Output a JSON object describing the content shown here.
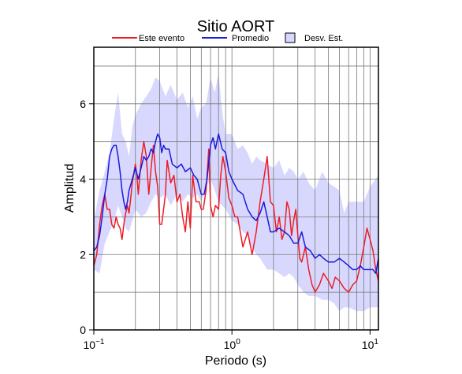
{
  "chart_data": {
    "type": "line",
    "title": "Sitio AORT",
    "xlabel": "Periodo (s)",
    "ylabel": "Amplitud",
    "xscale": "log",
    "xlim": [
      0.1,
      11.5
    ],
    "ylim": [
      0,
      7.5
    ],
    "grid": true,
    "legend_position": "top",
    "x_ticks": [
      {
        "value": 0.1,
        "base": "10",
        "exp": "−1"
      },
      {
        "value": 1,
        "base": "10",
        "exp": "0"
      },
      {
        "value": 10,
        "base": "10",
        "exp": "1"
      }
    ],
    "y_ticks": [
      0,
      2,
      4,
      6
    ],
    "legend": [
      {
        "label": "Este evento",
        "kind": "line",
        "color": "#ee1c25"
      },
      {
        "label": "Promedio",
        "kind": "line",
        "color": "#1a1adc"
      },
      {
        "label": "Desv. Est.",
        "kind": "band",
        "color": "#d8d8ff"
      }
    ],
    "colors": {
      "event": "#ee1c25",
      "mean": "#1a1adc",
      "band": "#d8d8ff"
    },
    "band": {
      "x": [
        0.1,
        0.11,
        0.12,
        0.13,
        0.14,
        0.15,
        0.16,
        0.17,
        0.18,
        0.19,
        0.2,
        0.22,
        0.24,
        0.26,
        0.28,
        0.3,
        0.33,
        0.36,
        0.4,
        0.44,
        0.48,
        0.52,
        0.56,
        0.6,
        0.65,
        0.7,
        0.75,
        0.8,
        0.85,
        0.9,
        1.0,
        1.1,
        1.2,
        1.3,
        1.4,
        1.5,
        1.6,
        1.8,
        2.0,
        2.2,
        2.4,
        2.6,
        2.8,
        3.0,
        3.3,
        3.6,
        4.0,
        4.5,
        5.0,
        5.5,
        6.0,
        6.5,
        7.0,
        8.0,
        9.0,
        10.0,
        11.5
      ],
      "upper": [
        2.9,
        3.7,
        4.2,
        4.7,
        5.6,
        6.3,
        5.2,
        5.0,
        4.6,
        5.4,
        5.7,
        6.0,
        6.2,
        6.4,
        6.7,
        6.6,
        6.2,
        6.5,
        6.1,
        6.3,
        5.9,
        6.2,
        5.6,
        5.9,
        6.0,
        6.7,
        6.3,
        6.8,
        5.8,
        5.2,
        5.2,
        4.8,
        4.9,
        4.7,
        4.4,
        4.6,
        4.5,
        4.4,
        4.3,
        4.5,
        4.1,
        4.3,
        4.2,
        4.0,
        4.2,
        3.9,
        3.7,
        4.2,
        3.9,
        3.8,
        3.7,
        3.1,
        3.4,
        3.4,
        3.4,
        3.8,
        4.1
      ],
      "lower": [
        1.6,
        1.5,
        2.3,
        2.6,
        2.9,
        3.3,
        3.0,
        2.7,
        2.6,
        2.9,
        3.2,
        3.0,
        3.1,
        3.4,
        3.6,
        3.5,
        3.6,
        3.3,
        3.6,
        3.4,
        3.6,
        3.5,
        3.6,
        3.4,
        3.8,
        4.0,
        3.7,
        3.4,
        3.3,
        3.2,
        2.9,
        2.8,
        2.6,
        2.5,
        2.2,
        2.0,
        1.9,
        1.6,
        1.6,
        1.5,
        1.4,
        1.5,
        1.4,
        1.2,
        1.0,
        0.9,
        0.9,
        0.8,
        0.8,
        0.7,
        0.5,
        0.6,
        0.6,
        0.5,
        0.5,
        0.6,
        0.6
      ]
    },
    "series": [
      {
        "name": "Este evento",
        "color": "#ee1c25",
        "x": [
          0.1,
          0.105,
          0.11,
          0.115,
          0.12,
          0.125,
          0.13,
          0.135,
          0.14,
          0.145,
          0.15,
          0.155,
          0.16,
          0.165,
          0.17,
          0.175,
          0.18,
          0.185,
          0.19,
          0.2,
          0.205,
          0.21,
          0.22,
          0.23,
          0.24,
          0.25,
          0.26,
          0.27,
          0.28,
          0.29,
          0.3,
          0.31,
          0.32,
          0.33,
          0.34,
          0.36,
          0.38,
          0.4,
          0.42,
          0.44,
          0.46,
          0.48,
          0.5,
          0.52,
          0.55,
          0.58,
          0.6,
          0.62,
          0.65,
          0.68,
          0.7,
          0.73,
          0.76,
          0.8,
          0.83,
          0.86,
          0.9,
          0.95,
          1.0,
          1.05,
          1.1,
          1.2,
          1.3,
          1.4,
          1.5,
          1.6,
          1.7,
          1.8,
          1.9,
          2.0,
          2.1,
          2.2,
          2.3,
          2.4,
          2.5,
          2.6,
          2.7,
          2.8,
          2.9,
          3.0,
          3.1,
          3.2,
          3.4,
          3.6,
          3.8,
          4.0,
          4.3,
          4.6,
          5.0,
          5.3,
          5.6,
          6.0,
          6.5,
          7.0,
          7.5,
          8.0,
          8.5,
          9.0,
          9.5,
          10.0,
          10.5,
          11.0,
          11.5
        ],
        "y": [
          1.7,
          2.0,
          2.8,
          3.3,
          3.6,
          3.2,
          3.2,
          2.8,
          2.7,
          3.0,
          2.8,
          2.7,
          2.4,
          2.8,
          3.1,
          3.3,
          3.1,
          3.5,
          3.9,
          4.4,
          4.1,
          3.6,
          4.5,
          5.0,
          4.6,
          3.6,
          4.3,
          4.9,
          4.2,
          3.8,
          2.8,
          2.8,
          3.2,
          3.6,
          4.5,
          3.9,
          4.1,
          3.4,
          3.6,
          3.0,
          2.6,
          3.4,
          2.7,
          4.1,
          3.4,
          3.4,
          3.2,
          3.2,
          3.7,
          4.8,
          3.3,
          3.0,
          3.3,
          3.2,
          4.1,
          4.6,
          4.2,
          3.5,
          3.3,
          3.0,
          3.0,
          2.2,
          2.6,
          2.0,
          2.6,
          3.4,
          4.0,
          4.6,
          3.4,
          3.3,
          2.6,
          3.0,
          2.4,
          2.6,
          3.4,
          3.2,
          2.5,
          2.9,
          3.2,
          2.5,
          1.9,
          1.8,
          2.2,
          1.6,
          1.2,
          1.0,
          1.2,
          1.5,
          1.3,
          1.1,
          1.4,
          1.3,
          1.1,
          1.0,
          1.2,
          1.3,
          1.7,
          2.2,
          2.7,
          2.4,
          2.1,
          1.6,
          1.3
        ]
      },
      {
        "name": "Promedio",
        "color": "#1a1adc",
        "x": [
          0.1,
          0.105,
          0.11,
          0.115,
          0.12,
          0.125,
          0.13,
          0.135,
          0.14,
          0.145,
          0.15,
          0.155,
          0.16,
          0.165,
          0.17,
          0.175,
          0.18,
          0.19,
          0.2,
          0.21,
          0.22,
          0.23,
          0.24,
          0.25,
          0.26,
          0.27,
          0.28,
          0.29,
          0.3,
          0.31,
          0.32,
          0.33,
          0.35,
          0.37,
          0.4,
          0.43,
          0.46,
          0.5,
          0.53,
          0.56,
          0.6,
          0.63,
          0.66,
          0.7,
          0.73,
          0.76,
          0.8,
          0.85,
          0.9,
          0.95,
          1.0,
          1.1,
          1.2,
          1.3,
          1.4,
          1.5,
          1.6,
          1.7,
          1.8,
          1.9,
          2.0,
          2.2,
          2.4,
          2.6,
          2.8,
          3.0,
          3.2,
          3.4,
          3.7,
          4.0,
          4.3,
          4.6,
          5.0,
          5.5,
          6.0,
          6.5,
          7.0,
          7.5,
          8.0,
          8.5,
          9.0,
          9.5,
          10.0,
          10.5,
          11.0,
          11.5
        ],
        "y": [
          2.1,
          2.2,
          2.5,
          3.0,
          3.6,
          4.0,
          4.6,
          4.8,
          4.9,
          4.9,
          4.6,
          4.2,
          3.7,
          3.4,
          3.2,
          3.4,
          3.7,
          4.0,
          4.3,
          4.0,
          4.3,
          4.6,
          4.5,
          4.6,
          4.8,
          4.7,
          5.0,
          5.2,
          5.1,
          4.7,
          4.9,
          4.8,
          4.8,
          4.4,
          4.3,
          4.4,
          4.2,
          4.3,
          4.1,
          4.0,
          3.6,
          3.6,
          4.0,
          4.9,
          5.1,
          4.8,
          5.2,
          4.8,
          4.7,
          4.2,
          4.0,
          3.7,
          3.6,
          3.2,
          3.0,
          2.9,
          3.1,
          3.4,
          3.0,
          2.6,
          2.6,
          2.7,
          2.6,
          2.5,
          2.3,
          2.3,
          2.6,
          2.2,
          2.1,
          1.9,
          2.0,
          1.9,
          1.8,
          1.8,
          1.9,
          1.8,
          1.7,
          1.6,
          1.6,
          1.7,
          1.6,
          1.6,
          1.6,
          1.6,
          1.5,
          1.9
        ]
      }
    ]
  }
}
